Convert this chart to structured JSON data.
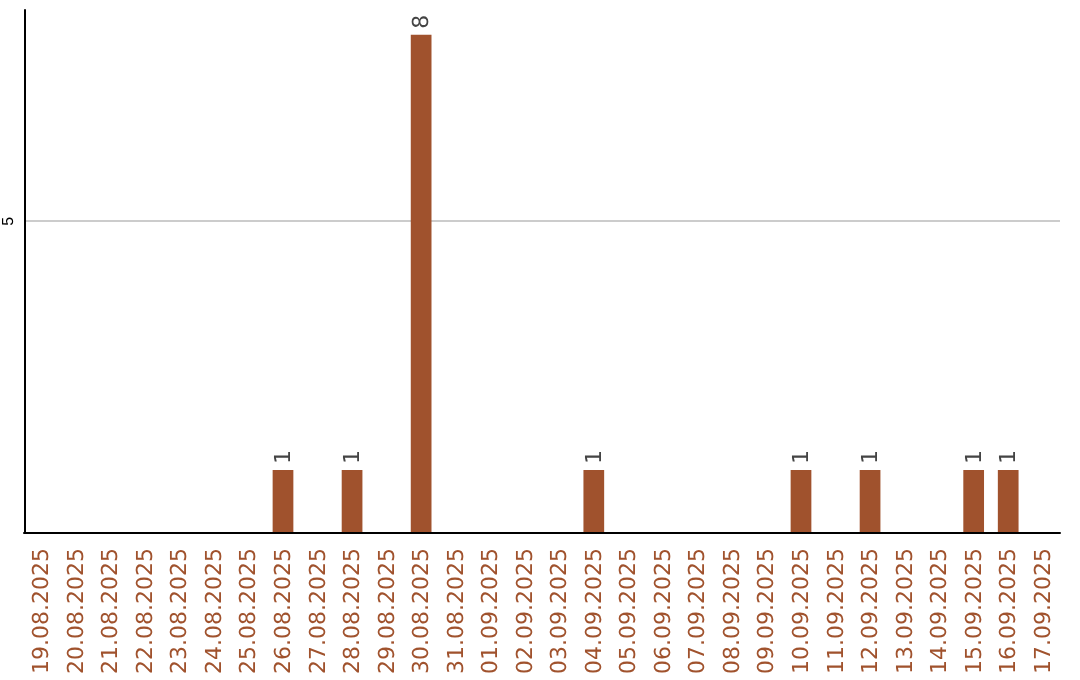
{
  "chart_data": {
    "type": "bar",
    "categories": [
      "19.08.2025",
      "20.08.2025",
      "21.08.2025",
      "22.08.2025",
      "23.08.2025",
      "24.08.2025",
      "25.08.2025",
      "26.08.2025",
      "27.08.2025",
      "28.08.2025",
      "29.08.2025",
      "30.08.2025",
      "31.08.2025",
      "01.09.2025",
      "02.09.2025",
      "03.09.2025",
      "04.09.2025",
      "05.09.2025",
      "06.09.2025",
      "07.09.2025",
      "08.09.2025",
      "09.09.2025",
      "10.09.2025",
      "11.09.2025",
      "12.09.2025",
      "13.09.2025",
      "14.09.2025",
      "15.09.2025",
      "16.09.2025",
      "17.09.2025"
    ],
    "values": [
      0,
      0,
      0,
      0,
      0,
      0,
      0,
      1,
      0,
      1,
      0,
      8,
      0,
      0,
      0,
      0,
      1,
      0,
      0,
      0,
      0,
      0,
      1,
      0,
      1,
      0,
      0,
      1,
      1,
      0
    ],
    "value_labels": [
      null,
      null,
      null,
      null,
      null,
      null,
      null,
      "1",
      null,
      "1",
      null,
      "8",
      null,
      null,
      null,
      null,
      "1",
      null,
      null,
      null,
      null,
      null,
      "1",
      null,
      "1",
      null,
      null,
      "1",
      "1",
      null
    ],
    "color": "#a0522d",
    "ylim": [
      0,
      8.4
    ],
    "yticks": [
      5
    ],
    "grid": "y"
  }
}
